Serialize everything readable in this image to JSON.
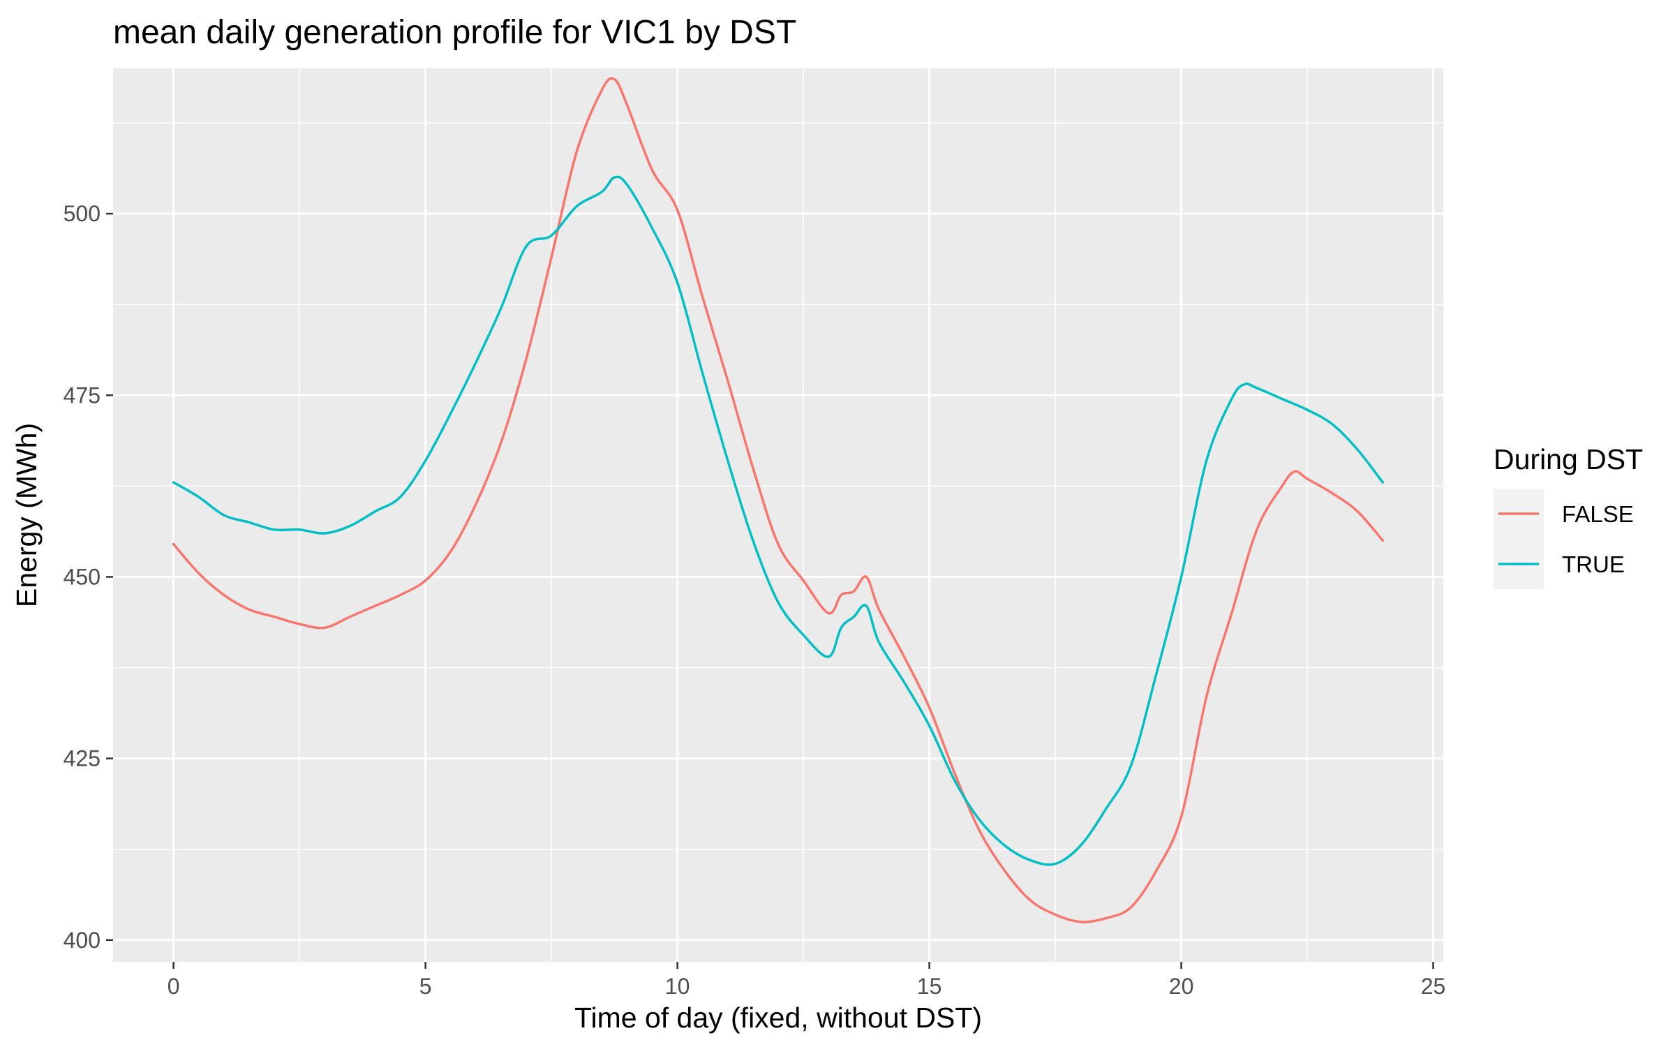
{
  "chart_data": {
    "type": "line",
    "title": "mean daily generation profile for VIC1 by DST",
    "xlabel": "Time of day (fixed, without DST)",
    "ylabel": "Energy (MWh)",
    "xlim": [
      -1.2,
      25.2
    ],
    "ylim": [
      397,
      520
    ],
    "x_ticks": [
      0,
      5,
      10,
      15,
      20,
      25
    ],
    "x_tick_labels": [
      "0",
      "5",
      "10",
      "15",
      "20",
      "25"
    ],
    "y_ticks": [
      400,
      425,
      450,
      475,
      500
    ],
    "y_tick_labels": [
      "400",
      "425",
      "450",
      "475",
      "500"
    ],
    "grid": true,
    "legend": {
      "title": "During DST",
      "position": "right"
    },
    "series": [
      {
        "name": "FALSE",
        "color": "#F8766D",
        "x": [
          0,
          0.5,
          1,
          1.5,
          2,
          2.5,
          3,
          3.5,
          4,
          4.5,
          5,
          5.5,
          6,
          6.5,
          7,
          7.5,
          8,
          8.5,
          8.75,
          9,
          9.5,
          10,
          10.5,
          11,
          11.5,
          12,
          12.5,
          13,
          13.25,
          13.5,
          13.75,
          14,
          14.5,
          15,
          15.5,
          16,
          16.5,
          17,
          17.5,
          18,
          18.5,
          19,
          19.5,
          20,
          20.5,
          21,
          21.5,
          22,
          22.25,
          22.5,
          23,
          23.5,
          24
        ],
        "y": [
          454.5,
          450.5,
          447.5,
          445.5,
          444.5,
          443.5,
          443,
          444.5,
          446,
          447.5,
          449.5,
          453.5,
          460,
          468.5,
          480,
          494,
          508.5,
          517,
          518.5,
          515,
          506,
          500.5,
          488.5,
          477,
          465,
          454.5,
          449.5,
          445,
          447.5,
          448,
          450,
          445.5,
          439,
          432,
          423,
          415,
          409.5,
          405.5,
          403.5,
          402.5,
          403,
          404.5,
          409.5,
          417,
          433.5,
          445,
          456.5,
          462.5,
          464.5,
          463.5,
          461.5,
          459,
          455
        ]
      },
      {
        "name": "TRUE",
        "color": "#00BFC4",
        "x": [
          0,
          0.5,
          1,
          1.5,
          2,
          2.5,
          3,
          3.5,
          4,
          4.5,
          5,
          5.5,
          6,
          6.5,
          7,
          7.5,
          8,
          8.5,
          8.75,
          9,
          9.5,
          10,
          10.5,
          11,
          11.5,
          12,
          12.5,
          13,
          13.25,
          13.5,
          13.75,
          14,
          14.5,
          15,
          15.5,
          16,
          16.5,
          17,
          17.5,
          18,
          18.5,
          19,
          19.5,
          20,
          20.5,
          21,
          21.25,
          21.5,
          22,
          22.5,
          23,
          23.5,
          24
        ],
        "y": [
          463,
          461,
          458.5,
          457.5,
          456.5,
          456.5,
          456,
          457,
          459,
          461,
          466,
          472.5,
          479.5,
          487,
          495.5,
          497,
          501,
          503,
          505,
          504,
          498,
          490.5,
          478,
          466,
          455,
          446.5,
          442,
          439,
          443,
          444.5,
          446,
          441,
          435.5,
          429.5,
          422,
          416.5,
          413,
          411,
          410.5,
          413,
          418,
          424,
          436.5,
          450,
          466,
          474.5,
          476.5,
          476,
          474.5,
          473,
          471,
          467.5,
          463
        ]
      }
    ]
  }
}
